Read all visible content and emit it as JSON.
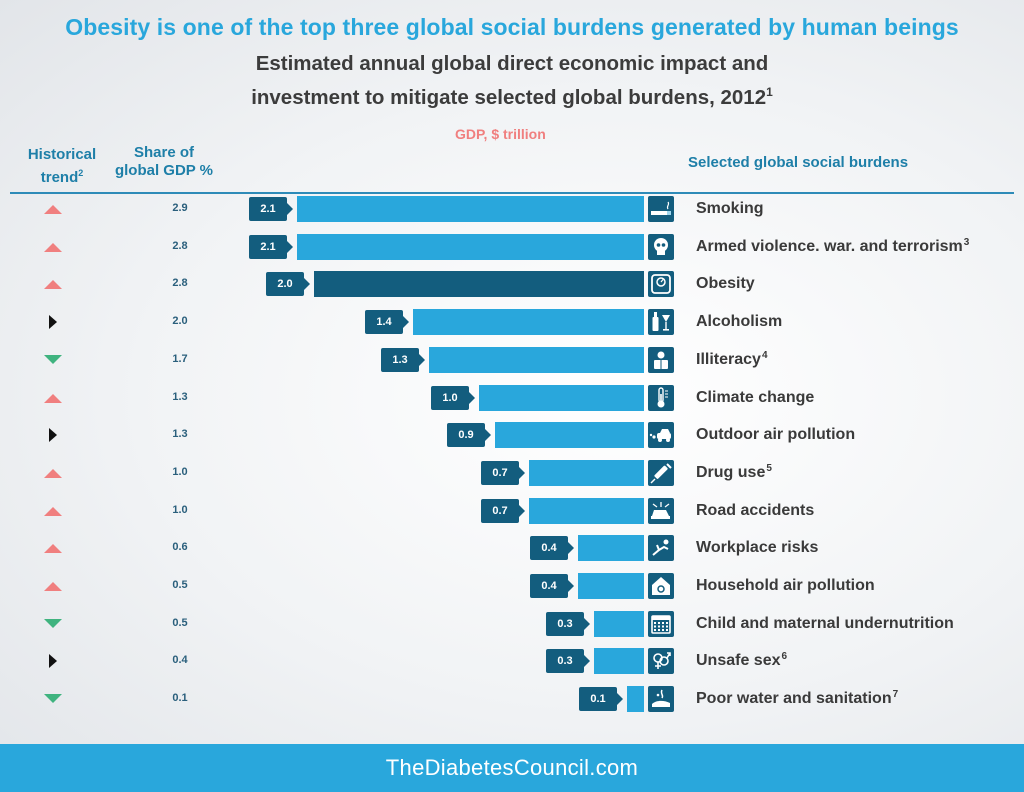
{
  "header": {
    "title": "Obesity is one of the top three global social burdens generated by human beings",
    "subtitle_line1": "Estimated annual global direct economic impact and",
    "subtitle_line2": "investment to mitigate selected global burdens, 2012",
    "subtitle_footnote": "1"
  },
  "columns": {
    "trend_label_line1": "Historical",
    "trend_label_line2": "trend",
    "trend_footnote": "2",
    "share_label_line1": "Share of",
    "share_label_line2": "global GDP %",
    "gdp_label": "GDP, $ trillion",
    "burdens_label": "Selected global social burdens"
  },
  "colors": {
    "accent": "#29a7dc",
    "highlight": "#135d7e",
    "trend_up": "#f07f7f",
    "trend_down": "#3fb37f",
    "trend_flat": "#111111",
    "header_text": "#1e7fa8"
  },
  "chart_data": {
    "type": "bar",
    "orientation": "horizontal",
    "title": "Estimated annual global direct economic impact and investment to mitigate selected global burdens, 2012",
    "xlabel": "GDP, $ trillion",
    "categories": [
      "Smoking",
      "Armed violence. war. and terrorism",
      "Obesity",
      "Alcoholism",
      "Illiteracy",
      "Climate change",
      "Outdoor air pollution",
      "Drug use",
      "Road accidents",
      "Workplace risks",
      "Household air pollution",
      "Child and maternal undernutrition",
      "Unsafe sex",
      "Poor water and sanitation"
    ],
    "values": [
      2.1,
      2.1,
      2.0,
      1.4,
      1.3,
      1.0,
      0.9,
      0.7,
      0.7,
      0.4,
      0.4,
      0.3,
      0.3,
      0.1
    ],
    "rows": [
      {
        "name": "Smoking",
        "footnote": "",
        "gdp": 2.1,
        "value_label": "2.1",
        "share": "2.9",
        "trend": "up",
        "icon": "cigarette-icon",
        "highlight": false
      },
      {
        "name": "Armed violence. war. and terrorism",
        "footnote": "3",
        "gdp": 2.1,
        "value_label": "2.1",
        "share": "2.8",
        "trend": "up",
        "icon": "skull-mask-icon",
        "highlight": false
      },
      {
        "name": "Obesity",
        "footnote": "",
        "gdp": 2.0,
        "value_label": "2.0",
        "share": "2.8",
        "trend": "up",
        "icon": "scale-icon",
        "highlight": true
      },
      {
        "name": "Alcoholism",
        "footnote": "",
        "gdp": 1.4,
        "value_label": "1.4",
        "share": "2.0",
        "trend": "flat",
        "icon": "bottle-glass-icon",
        "highlight": false
      },
      {
        "name": "Illiteracy",
        "footnote": "4",
        "gdp": 1.3,
        "value_label": "1.3",
        "share": "1.7",
        "trend": "down",
        "icon": "reader-icon",
        "highlight": false
      },
      {
        "name": "Climate change",
        "footnote": "",
        "gdp": 1.0,
        "value_label": "1.0",
        "share": "1.3",
        "trend": "up",
        "icon": "thermometer-icon",
        "highlight": false
      },
      {
        "name": "Outdoor air pollution",
        "footnote": "",
        "gdp": 0.9,
        "value_label": "0.9",
        "share": "1.3",
        "trend": "flat",
        "icon": "car-exhaust-icon",
        "highlight": false
      },
      {
        "name": "Drug use",
        "footnote": "5",
        "gdp": 0.7,
        "value_label": "0.7",
        "share": "1.0",
        "trend": "up",
        "icon": "syringe-icon",
        "highlight": false
      },
      {
        "name": "Road accidents",
        "footnote": "",
        "gdp": 0.7,
        "value_label": "0.7",
        "share": "1.0",
        "trend": "up",
        "icon": "car-crash-icon",
        "highlight": false
      },
      {
        "name": "Workplace risks",
        "footnote": "",
        "gdp": 0.4,
        "value_label": "0.4",
        "share": "0.6",
        "trend": "up",
        "icon": "falling-worker-icon",
        "highlight": false
      },
      {
        "name": "Household air pollution",
        "footnote": "",
        "gdp": 0.4,
        "value_label": "0.4",
        "share": "0.5",
        "trend": "up",
        "icon": "house-smoke-icon",
        "highlight": false
      },
      {
        "name": "Child and maternal undernutrition",
        "footnote": "",
        "gdp": 0.3,
        "value_label": "0.3",
        "share": "0.5",
        "trend": "down",
        "icon": "calendar-icon",
        "highlight": false
      },
      {
        "name": "Unsafe sex",
        "footnote": "6",
        "gdp": 0.3,
        "value_label": "0.3",
        "share": "0.4",
        "trend": "flat",
        "icon": "gender-symbols-icon",
        "highlight": false
      },
      {
        "name": "Poor water and sanitation",
        "footnote": "7",
        "gdp": 0.1,
        "value_label": "0.1",
        "share": "0.1",
        "trend": "down",
        "icon": "hand-washing-icon",
        "highlight": false
      }
    ],
    "legend": "none",
    "grid": false
  },
  "footer": {
    "site": "TheDiabetesCouncil.com"
  }
}
